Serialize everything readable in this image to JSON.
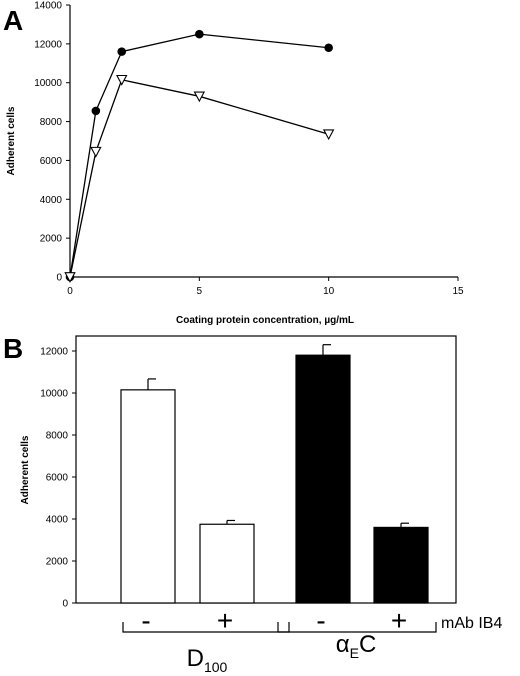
{
  "chart_data": [
    {
      "panel": "A",
      "type": "line",
      "xlabel": "Coating protein concentration, µg/mL",
      "ylabel": "Adherent cells",
      "xlim": [
        0,
        15
      ],
      "ylim": [
        0,
        14000
      ],
      "x_ticks": [
        "0",
        "5",
        "10",
        "15"
      ],
      "y_ticks": [
        "0",
        "2000",
        "4000",
        "6000",
        "8000",
        "10000",
        "12000",
        "14000"
      ],
      "series": [
        {
          "marker": "filled-circle",
          "x": [
            0,
            1,
            2,
            5,
            10
          ],
          "y": [
            0,
            8550,
            11600,
            12500,
            11800
          ]
        },
        {
          "marker": "open-triangle-down",
          "x": [
            0,
            1,
            2,
            5,
            10
          ],
          "y": [
            0,
            6450,
            10150,
            9300,
            7350
          ]
        }
      ]
    },
    {
      "panel": "B",
      "type": "bar",
      "ylabel": "Adherent cells",
      "ylim": [
        0,
        12000
      ],
      "y_ticks": [
        "0",
        "2000",
        "4000",
        "6000",
        "8000",
        "10000",
        "12000"
      ],
      "categories": [
        "-",
        "+",
        "-",
        "+"
      ],
      "values": [
        10150,
        3750,
        11800,
        3600
      ],
      "errors": [
        520,
        180,
        500,
        200
      ],
      "fills": [
        "#ffffff",
        "#ffffff",
        "#000000",
        "#000000"
      ],
      "group_labels": [
        "D",
        "α"
      ],
      "group_subscripts": [
        "100",
        "E"
      ],
      "group_suffixes": [
        "",
        "C"
      ],
      "treatment_label": "mAb IB4"
    }
  ]
}
